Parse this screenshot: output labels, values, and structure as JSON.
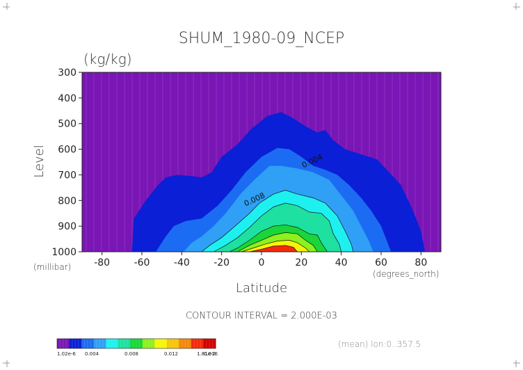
{
  "chart_data": {
    "type": "contour",
    "title": "SHUM_1980-09_NCEP",
    "units": "(kg/kg)",
    "xlabel": "Latitude",
    "ylabel": "Level",
    "x_unit_label": "(degrees_north)",
    "y_unit_label": "(millibar)",
    "xlim": [
      -90,
      90
    ],
    "ylim": [
      1000,
      300
    ],
    "xticks": [
      -80,
      -60,
      -40,
      -20,
      0,
      20,
      40,
      60,
      80
    ],
    "yticks": [
      300,
      400,
      500,
      600,
      700,
      800,
      900,
      1000
    ],
    "contour_interval_text": "CONTOUR INTERVAL = 2.000E-03",
    "contour_labels": [
      {
        "text": "0.004",
        "lat": 26,
        "level": 655
      },
      {
        "text": "0.008",
        "lat": -3,
        "level": 805
      }
    ],
    "subtitle_note": "(mean) lon:0..357.5",
    "colorbar": {
      "min_label": "1.02e-6",
      "max_label": "1.81e-2",
      "tick_labels": [
        "0.004",
        "0.008",
        "0.012",
        "0.016"
      ],
      "colors": [
        "#7a16b5",
        "#0a1fd6",
        "#1b6cf2",
        "#2fa0f5",
        "#1ef0f0",
        "#1ee0a0",
        "#19d63a",
        "#8ef01e",
        "#f5f50a",
        "#f5c60a",
        "#f5870a",
        "#f52a0a",
        "#d40000"
      ]
    },
    "bands": [
      {
        "threshold": 0.002,
        "color": "#0a1fd6",
        "boundary": [
          [
            -65,
            1000
          ],
          [
            -64,
            870
          ],
          [
            -58,
            800
          ],
          [
            -52,
            740
          ],
          [
            -48,
            710
          ],
          [
            -42,
            700
          ],
          [
            -35,
            705
          ],
          [
            -30,
            710
          ],
          [
            -25,
            690
          ],
          [
            -20,
            630
          ],
          [
            -12,
            580
          ],
          [
            -5,
            520
          ],
          [
            3,
            470
          ],
          [
            10,
            455
          ],
          [
            16,
            480
          ],
          [
            22,
            510
          ],
          [
            28,
            535
          ],
          [
            32,
            525
          ],
          [
            36,
            565
          ],
          [
            42,
            600
          ],
          [
            50,
            620
          ],
          [
            58,
            640
          ],
          [
            64,
            690
          ],
          [
            70,
            740
          ],
          [
            76,
            840
          ],
          [
            80,
            920
          ],
          [
            82,
            1000
          ]
        ]
      },
      {
        "threshold": 0.004,
        "color": "#1b6cf2",
        "boundary": [
          [
            -53,
            1000
          ],
          [
            -48,
            940
          ],
          [
            -44,
            900
          ],
          [
            -38,
            880
          ],
          [
            -30,
            870
          ],
          [
            -22,
            820
          ],
          [
            -15,
            760
          ],
          [
            -8,
            690
          ],
          [
            0,
            630
          ],
          [
            8,
            595
          ],
          [
            14,
            600
          ],
          [
            20,
            630
          ],
          [
            26,
            665
          ],
          [
            32,
            680
          ],
          [
            38,
            700
          ],
          [
            44,
            740
          ],
          [
            50,
            790
          ],
          [
            55,
            840
          ],
          [
            60,
            900
          ],
          [
            63,
            960
          ],
          [
            65,
            1000
          ]
        ]
      },
      {
        "threshold": 0.006,
        "color": "#2fa0f5",
        "boundary": [
          [
            -39,
            1000
          ],
          [
            -35,
            965
          ],
          [
            -30,
            940
          ],
          [
            -24,
            900
          ],
          [
            -18,
            850
          ],
          [
            -10,
            770
          ],
          [
            -3,
            715
          ],
          [
            4,
            665
          ],
          [
            10,
            665
          ],
          [
            18,
            675
          ],
          [
            26,
            690
          ],
          [
            34,
            720
          ],
          [
            40,
            780
          ],
          [
            46,
            840
          ],
          [
            50,
            900
          ],
          [
            54,
            960
          ],
          [
            56,
            1000
          ]
        ]
      },
      {
        "threshold": 0.008,
        "color": "#1ef0f0",
        "boundary": [
          [
            -30,
            1000
          ],
          [
            -26,
            975
          ],
          [
            -20,
            945
          ],
          [
            -14,
            905
          ],
          [
            -6,
            850
          ],
          [
            -1,
            810
          ],
          [
            6,
            775
          ],
          [
            12,
            760
          ],
          [
            18,
            775
          ],
          [
            26,
            790
          ],
          [
            32,
            810
          ],
          [
            38,
            860
          ],
          [
            42,
            920
          ],
          [
            45,
            970
          ],
          [
            46,
            1000
          ]
        ]
      },
      {
        "threshold": 0.01,
        "color": "#1ee0a0",
        "boundary": [
          [
            -24,
            1000
          ],
          [
            -18,
            975
          ],
          [
            -12,
            945
          ],
          [
            -6,
            905
          ],
          [
            0,
            860
          ],
          [
            6,
            825
          ],
          [
            12,
            810
          ],
          [
            18,
            820
          ],
          [
            24,
            845
          ],
          [
            30,
            850
          ],
          [
            34,
            880
          ],
          [
            36,
            930
          ],
          [
            39,
            970
          ],
          [
            40,
            1000
          ]
        ]
      },
      {
        "threshold": 0.012,
        "color": "#19d63a",
        "boundary": [
          [
            -16,
            1000
          ],
          [
            -12,
            985
          ],
          [
            -6,
            955
          ],
          [
            0,
            920
          ],
          [
            6,
            900
          ],
          [
            12,
            895
          ],
          [
            18,
            905
          ],
          [
            24,
            930
          ],
          [
            28,
            935
          ],
          [
            30,
            965
          ],
          [
            33,
            1000
          ]
        ]
      },
      {
        "threshold": 0.014,
        "color": "#8ef01e",
        "boundary": [
          [
            -12,
            1000
          ],
          [
            -6,
            975
          ],
          [
            0,
            955
          ],
          [
            6,
            935
          ],
          [
            12,
            925
          ],
          [
            18,
            930
          ],
          [
            22,
            955
          ],
          [
            26,
            975
          ],
          [
            28,
            1000
          ]
        ]
      },
      {
        "threshold": 0.016,
        "color": "#f5f50a",
        "boundary": [
          [
            -10,
            1000
          ],
          [
            -4,
            985
          ],
          [
            2,
            970
          ],
          [
            8,
            958
          ],
          [
            14,
            955
          ],
          [
            18,
            965
          ],
          [
            22,
            985
          ],
          [
            24,
            1000
          ]
        ]
      },
      {
        "threshold": 0.017,
        "color": "#f52a0a",
        "boundary": [
          [
            -6,
            1000
          ],
          [
            0,
            990
          ],
          [
            6,
            978
          ],
          [
            12,
            975
          ],
          [
            16,
            982
          ],
          [
            18,
            1000
          ]
        ]
      }
    ]
  }
}
